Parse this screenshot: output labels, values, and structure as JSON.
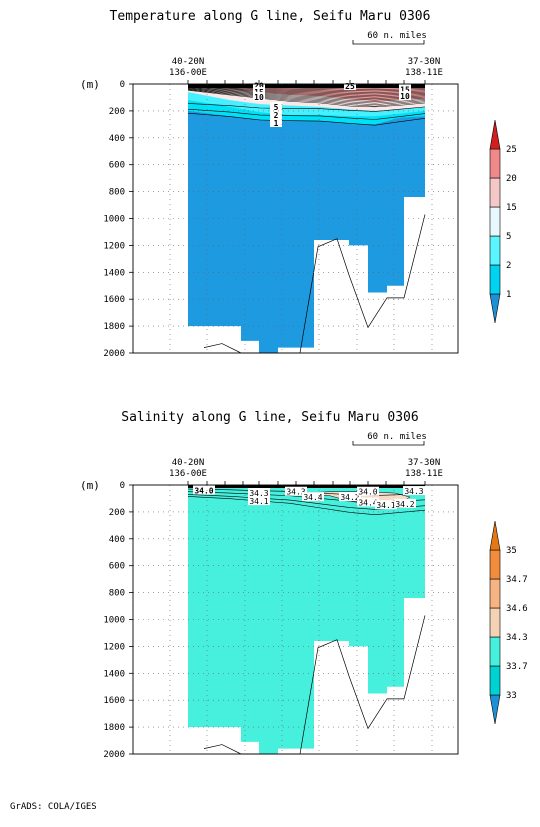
{
  "footer": "GrADS: COLA/IGES",
  "chart_data": [
    {
      "type": "heatmap",
      "title": "Temperature along G line, Seifu Maru 0306",
      "ylabel": "(m)",
      "ylim": [
        2000,
        0
      ],
      "yticks": [
        0,
        200,
        400,
        600,
        800,
        1000,
        1200,
        1400,
        1600,
        1800,
        2000
      ],
      "left_station": [
        "40-20N",
        "136-00E"
      ],
      "right_station": [
        "37-30N",
        "138-11E"
      ],
      "scale_label": "60 n. miles",
      "grid": "dotted",
      "contour_labels": [
        "20",
        "15",
        "10",
        "5",
        "2",
        "1",
        "25",
        "15",
        "10"
      ],
      "colorbar": {
        "levels": [
          "1",
          "2",
          "5",
          "15",
          "20",
          "25"
        ],
        "colors": [
          "#1e90d8",
          "#00d2f0",
          "#5af5ff",
          "#e8f8ff",
          "#f5c8c8",
          "#f08a8a",
          "#d21e1e"
        ]
      },
      "layers": [
        {
          "name": "deep",
          "color": "#1e9be0"
        },
        {
          "name": "1-2",
          "color": "#00e1f5"
        },
        {
          "name": "2-5",
          "color": "#46f0ff"
        }
      ]
    },
    {
      "type": "heatmap",
      "title": "Salinity along G line, Seifu Maru 0306",
      "ylabel": "(m)",
      "ylim": [
        2000,
        0
      ],
      "yticks": [
        0,
        200,
        400,
        600,
        800,
        1000,
        1200,
        1400,
        1600,
        1800,
        2000
      ],
      "left_station": [
        "40-20N",
        "136-00E"
      ],
      "right_station": [
        "37-30N",
        "138-11E"
      ],
      "scale_label": "60 n. miles",
      "grid": "dotted",
      "contour_labels": [
        "34.0",
        "34.3",
        "34.1",
        "34.3",
        "34.4",
        "34.2",
        "34.0",
        "34.4",
        "34.1",
        "34.2",
        "34.3"
      ],
      "colorbar": {
        "levels": [
          "33",
          "33.7",
          "34.3",
          "34.6",
          "34.7",
          "35"
        ],
        "colors": [
          "#1e90d8",
          "#00d2d2",
          "#46f0dc",
          "#f5d2b4",
          "#f5b482",
          "#f08c3c",
          "#e67814"
        ]
      },
      "layers": [
        {
          "name": "main",
          "color": "#46f0dc"
        }
      ]
    }
  ]
}
